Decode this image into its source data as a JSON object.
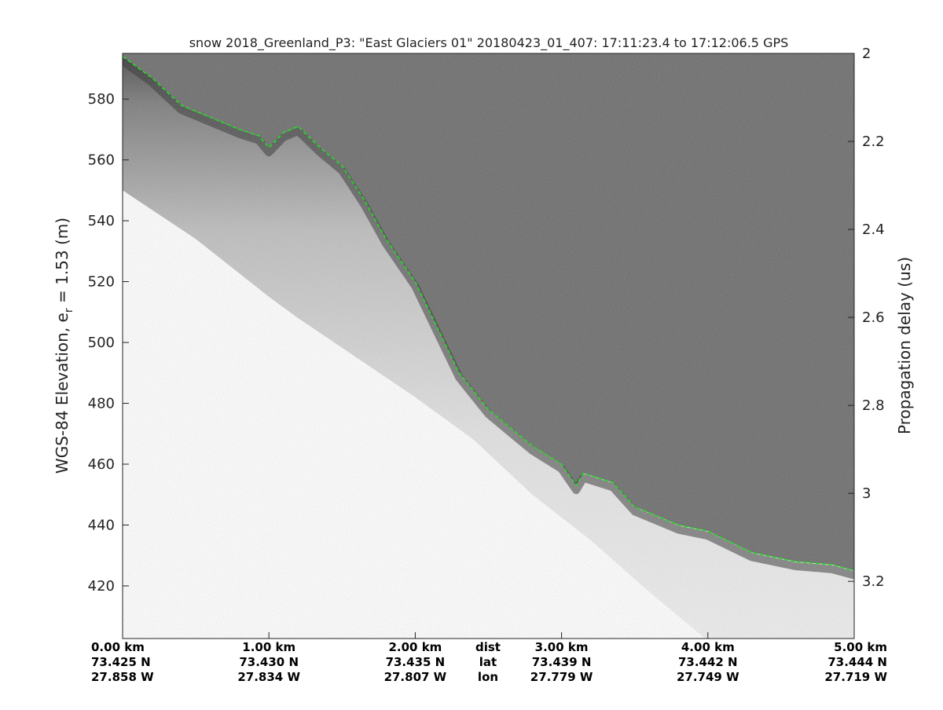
{
  "chart_data": {
    "type": "radar-echogram",
    "title": "snow 2018_Greenland_P3: \"East Glaciers 01\"  20180423_01_407: 17:11:23.4 to 17:12:06.5 GPS",
    "ylabel_left": "WGS-84 Elevation, e",
    "ylabel_left_sub": "r",
    "ylabel_left_suffix": " = 1.53 (m)",
    "ylabel_right": "Propagation delay (us)",
    "left_axis": {
      "ylim": [
        402.7,
        595
      ],
      "ticks": [
        "580",
        "560",
        "540",
        "520",
        "500",
        "480",
        "460",
        "440",
        "420"
      ],
      "tick_values": [
        580,
        560,
        540,
        520,
        500,
        480,
        460,
        440,
        420
      ]
    },
    "right_axis": {
      "ylim": [
        2.0,
        3.33
      ],
      "ticks": [
        "2",
        "2.2",
        "2.4",
        "2.6",
        "2.8",
        "3",
        "3.2"
      ],
      "tick_values": [
        2.0,
        2.2,
        2.4,
        2.6,
        2.8,
        3.0,
        3.2
      ]
    },
    "xlim": [
      0,
      5
    ],
    "x_ticks": [
      {
        "dist_value": 0,
        "dist": "0.00 km",
        "lat": "73.425 N",
        "lon": "27.858 W"
      },
      {
        "dist_value": 1,
        "dist": "1.00 km",
        "lat": "73.430 N",
        "lon": "27.834 W"
      },
      {
        "dist_value": 2,
        "dist": "2.00 km",
        "lat": "73.435 N",
        "lon": "27.807 W"
      },
      {
        "dist_value": 3,
        "dist": "3.00 km",
        "lat": "73.439 N",
        "lon": "27.779 W"
      },
      {
        "dist_value": 4,
        "dist": "4.00 km",
        "lat": "73.442 N",
        "lon": "27.749 W"
      },
      {
        "dist_value": 5,
        "dist": "5.00 km",
        "lat": "73.444 N",
        "lon": "27.719 W"
      }
    ],
    "row_labels": {
      "dist": "dist",
      "lat": "lat",
      "lon": "lon"
    },
    "surface_series": {
      "x": [
        0,
        0.2,
        0.4,
        0.6,
        0.8,
        0.93,
        1.0,
        1.1,
        1.2,
        1.35,
        1.5,
        1.65,
        1.8,
        2.0,
        2.15,
        2.3,
        2.5,
        2.65,
        2.8,
        3.0,
        3.1,
        3.15,
        3.35,
        3.5,
        3.8,
        4.0,
        4.3,
        4.6,
        4.85,
        5.0
      ],
      "y": [
        594,
        587,
        578,
        574,
        570,
        568,
        564,
        569,
        571,
        564,
        558,
        547,
        534,
        520,
        505,
        490,
        478,
        472,
        466,
        460,
        453,
        457,
        454,
        446,
        440,
        438,
        431,
        428,
        427,
        425
      ],
      "color": "#22dd22"
    },
    "noise_floor_series": {
      "x": [
        0,
        0.5,
        1.0,
        1.2,
        1.6,
        2.0,
        2.4,
        2.8,
        3.2,
        3.6,
        3.8,
        4.0,
        4.2
      ],
      "y": [
        550,
        534,
        515,
        508,
        495,
        482,
        468,
        450,
        435,
        418,
        410,
        402,
        400
      ]
    },
    "colors": {
      "upper_background": "#6b6b6b",
      "dark_layer": "#2a2a2a",
      "lower_fill": "#ffffff",
      "surface_line": "#22dd22"
    }
  }
}
